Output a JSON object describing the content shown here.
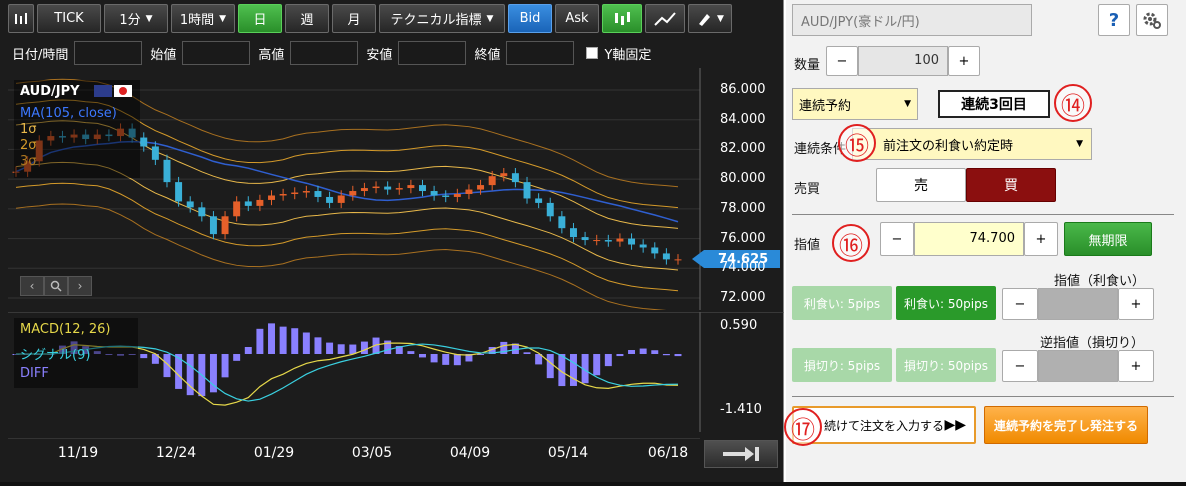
{
  "toolbar": {
    "tick": "TICK",
    "interval1": "1分",
    "interval2": "1時間",
    "day": "日",
    "week": "週",
    "month": "月",
    "technical": "テクニカル指標",
    "bid": "Bid",
    "ask": "Ask"
  },
  "ohlc": {
    "datetime": "日付/時間",
    "open": "始値",
    "high": "高値",
    "low": "安値",
    "close": "終値",
    "yfix": "Y軸固定"
  },
  "chart": {
    "symbol": "AUD/JPY",
    "ma": "MA(105, close)",
    "s1": "1σ",
    "s2": "2σ",
    "s3": "3σ",
    "last_price": "74.625",
    "macd": "MACD(12, 26)",
    "signal": "シグナル(9)",
    "diff": "DIFF",
    "macd_top": "0.590",
    "macd_bottom": "-1.410"
  },
  "chart_data": {
    "type": "line",
    "price_axis": [
      86.0,
      84.0,
      82.0,
      80.0,
      78.0,
      76.0,
      74.0,
      72.0
    ],
    "x_ticks": [
      "11/19",
      "12/24",
      "01/29",
      "03/05",
      "04/09",
      "05/14",
      "06/18"
    ],
    "ylim": [
      72.0,
      86.0
    ],
    "series": [
      {
        "name": "AUD/JPY",
        "values": [
          80.5,
          81.2,
          82.6,
          82.9,
          82.8,
          83.0,
          82.7,
          83.0,
          82.9,
          83.4,
          82.8,
          82.2,
          81.3,
          79.8,
          78.5,
          78.1,
          77.5,
          76.3,
          77.5,
          78.5,
          78.2,
          78.6,
          78.9,
          79.0,
          79.1,
          79.2,
          78.8,
          78.4,
          78.9,
          79.2,
          79.4,
          79.5,
          79.3,
          79.4,
          79.6,
          79.2,
          78.9,
          78.8,
          79.0,
          79.3,
          79.6,
          80.2,
          80.4,
          79.8,
          78.7,
          78.4,
          77.5,
          76.7,
          76.1,
          75.9,
          75.9,
          75.8,
          76.0,
          75.6,
          75.4,
          75.0,
          74.6,
          74.6
        ]
      }
    ]
  },
  "order": {
    "pair": "AUD/JPY(豪ドル/円)",
    "help": "?",
    "qty_label": "数量",
    "qty_value": "100",
    "minus": "−",
    "plus": "+",
    "seq_select": "連続予約",
    "seq_round": "連続3回目",
    "cond_label": "連続条件",
    "cond_select": "前注文の利食い約定時",
    "side_label": "売買",
    "sell": "売",
    "buy": "買",
    "price_label": "指値",
    "price_value": "74.700",
    "expiry": "無期限",
    "tp_title": "指値（利食い）",
    "tp5": "利食い: 5pips",
    "tp50": "利食い: 50pips",
    "sl_title": "逆指値（損切り）",
    "sl5": "損切り: 5pips",
    "sl50": "損切り: 50pips",
    "continue_btn": "続けて注文を入力する",
    "finish_btn": "連続予約を完了し発注する"
  },
  "annotations": {
    "a14": "⑭",
    "a15": "⑮",
    "a16": "⑯",
    "a17": "⑰"
  },
  "colors": {
    "bullish": "#e6602a",
    "bearish": "#3ab0d8",
    "ma": "#2f5fd0",
    "band": "#d49a2a",
    "accent_green": "#2a9a2a",
    "buy_red": "#8b0f0f"
  }
}
